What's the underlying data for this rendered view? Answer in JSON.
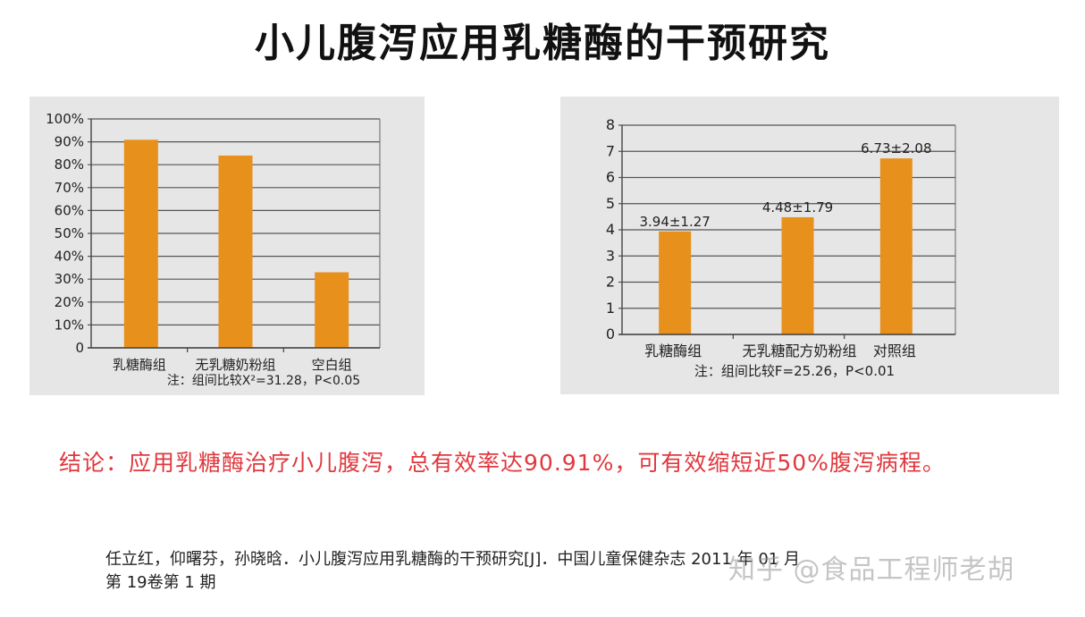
{
  "title": "小儿腹泻应用乳糖酶的干预研究",
  "chart_data": [
    {
      "type": "bar",
      "title": "",
      "categories": [
        "乳糖酶组",
        "无乳糖奶粉组",
        "空白组"
      ],
      "values": [
        90.9,
        84,
        33
      ],
      "ylabel": "",
      "xlabel": "",
      "ylim": [
        0,
        100
      ],
      "yticks": [
        "0",
        "10%",
        "20%",
        "30%",
        "40%",
        "50%",
        "60%",
        "70%",
        "80%",
        "90%",
        "100%"
      ],
      "grid": true,
      "bar_color": "#e8901c",
      "note": "注：组间比较X²=31.28，P<0.05"
    },
    {
      "type": "bar",
      "title": "",
      "categories": [
        "乳糖酶组",
        "无乳糖配方奶粉组",
        "对照组"
      ],
      "values": [
        3.94,
        4.48,
        6.73
      ],
      "errors": [
        1.27,
        1.79,
        2.08
      ],
      "data_labels": [
        "3.94±1.27",
        "4.48±1.79",
        "6.73±2.08"
      ],
      "ylabel": "",
      "xlabel": "",
      "ylim": [
        0,
        8
      ],
      "yticks": [
        "0",
        "1",
        "2",
        "3",
        "4",
        "5",
        "6",
        "7",
        "8"
      ],
      "grid": true,
      "bar_color": "#e8901c",
      "note": "注：组间比较F=25.26，P<0.01"
    }
  ],
  "chart1": {
    "yticks": [
      "0",
      "10%",
      "20%",
      "30%",
      "40%",
      "50%",
      "60%",
      "70%",
      "80%",
      "90%",
      "100%"
    ],
    "categories": [
      "乳糖酶组",
      "无乳糖奶粉组",
      "空白组"
    ],
    "note": "注：组间比较X²=31.28，P<0.05"
  },
  "chart2": {
    "yticks": [
      "0",
      "1",
      "2",
      "3",
      "4",
      "5",
      "6",
      "7",
      "8"
    ],
    "categories": [
      "乳糖酶组",
      "无乳糖配方奶粉组",
      "对照组"
    ],
    "labels": [
      "3.94±1.27",
      "4.48±1.79",
      "6.73±2.08"
    ],
    "note": "注：组间比较F=25.26，P<0.01"
  },
  "conclusion": "结论：应用乳糖酶治疗小儿腹泻，总有效率达90.91%，可有效缩短近50%腹泻病程。",
  "reference": {
    "line1": "任立红，仰曙芬，孙晓晗．小儿腹泻应用乳糖酶的干预研究[J]．中国儿童保健杂志 2011 年 01 月",
    "line2": "第 19卷第 1 期"
  },
  "watermark": "知乎 @食品工程师老胡"
}
